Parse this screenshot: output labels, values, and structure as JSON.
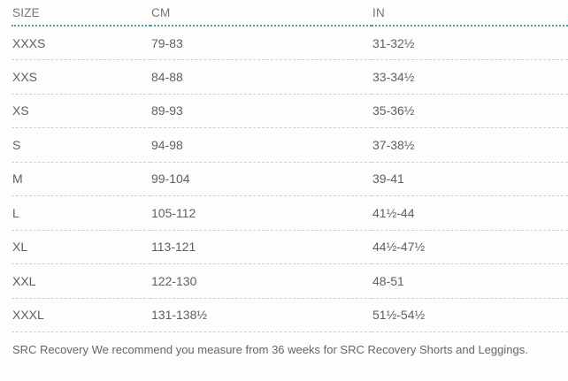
{
  "colors": {
    "header_rule": "#4aa0a0",
    "row_rule": "#b9d8d8",
    "header_text": "#757575",
    "body_text": "#5f5f5f",
    "footnote_text": "#666666",
    "background": "#fdfdfd"
  },
  "table": {
    "columns": [
      "SIZE",
      "CM",
      "IN"
    ],
    "rows": [
      {
        "size": "XXXS",
        "cm": "79-83",
        "in": "31-32½"
      },
      {
        "size": "XXS",
        "cm": "84-88",
        "in": "33-34½"
      },
      {
        "size": "XS",
        "cm": "89-93",
        "in": "35-36½"
      },
      {
        "size": "S",
        "cm": "94-98",
        "in": "37-38½"
      },
      {
        "size": "M",
        "cm": "99-104",
        "in": "39-41"
      },
      {
        "size": "L",
        "cm": "105-112",
        "in": "41½-44"
      },
      {
        "size": "XL",
        "cm": "113-121",
        "in": "44½-47½"
      },
      {
        "size": "XXL",
        "cm": "122-130",
        "in": "48-51"
      },
      {
        "size": "XXXL",
        "cm": "131-138½",
        "in": "51½-54½"
      }
    ],
    "footnote": "SRC Recovery We recommend you measure from 36 weeks for SRC Recovery Shorts and Leggings."
  }
}
